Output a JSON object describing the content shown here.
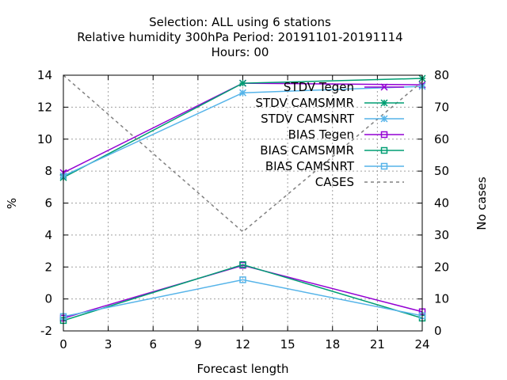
{
  "chart_data": {
    "type": "line",
    "title_lines": [
      "Selection: ALL using     6 stations",
      "Relative humidity 300hPa    Period: 20191101-20191114",
      "Hours:  00"
    ],
    "xlabel": "Forecast length",
    "ylabel": "%",
    "y2label": "No cases",
    "xlim": [
      0,
      24
    ],
    "ylim": [
      -2,
      14
    ],
    "y2lim": [
      0,
      80
    ],
    "xticks": [
      0,
      3,
      6,
      9,
      12,
      15,
      18,
      21,
      24
    ],
    "yticks": [
      -2,
      0,
      2,
      4,
      6,
      8,
      10,
      12,
      14
    ],
    "y2ticks": [
      0,
      10,
      20,
      30,
      40,
      50,
      60,
      70,
      80
    ],
    "grid": true,
    "legend_position": "top-right",
    "series": [
      {
        "name": "STDV Tegen",
        "axis": "y",
        "color": "#9400d3",
        "marker": "x",
        "x": [
          0,
          12,
          24
        ],
        "y": [
          7.9,
          13.5,
          13.4
        ]
      },
      {
        "name": "STDV CAMSMMR",
        "axis": "y",
        "color": "#009e73",
        "marker": "star",
        "x": [
          0,
          12,
          24
        ],
        "y": [
          7.6,
          13.5,
          13.8
        ]
      },
      {
        "name": "STDV CAMSNRT",
        "axis": "y",
        "color": "#56b4e9",
        "marker": "star",
        "x": [
          0,
          12,
          24
        ],
        "y": [
          7.7,
          12.9,
          13.3
        ]
      },
      {
        "name": "BIAS Tegen",
        "axis": "y",
        "color": "#9400d3",
        "marker": "square",
        "x": [
          0,
          12,
          24
        ],
        "y": [
          -1.2,
          2.1,
          -0.8
        ]
      },
      {
        "name": "BIAS CAMSMMR",
        "axis": "y",
        "color": "#009e73",
        "marker": "square",
        "x": [
          0,
          12,
          24
        ],
        "y": [
          -1.35,
          2.15,
          -1.2
        ]
      },
      {
        "name": "BIAS CAMSNRT",
        "axis": "y",
        "color": "#56b4e9",
        "marker": "square",
        "x": [
          0,
          12,
          24
        ],
        "y": [
          -1.1,
          1.2,
          -1.05
        ]
      },
      {
        "name": "CASES",
        "axis": "y2",
        "color": "#808080",
        "marker": "none",
        "dashed": true,
        "x": [
          0,
          12,
          24
        ],
        "y": [
          80,
          31,
          78
        ]
      }
    ]
  }
}
